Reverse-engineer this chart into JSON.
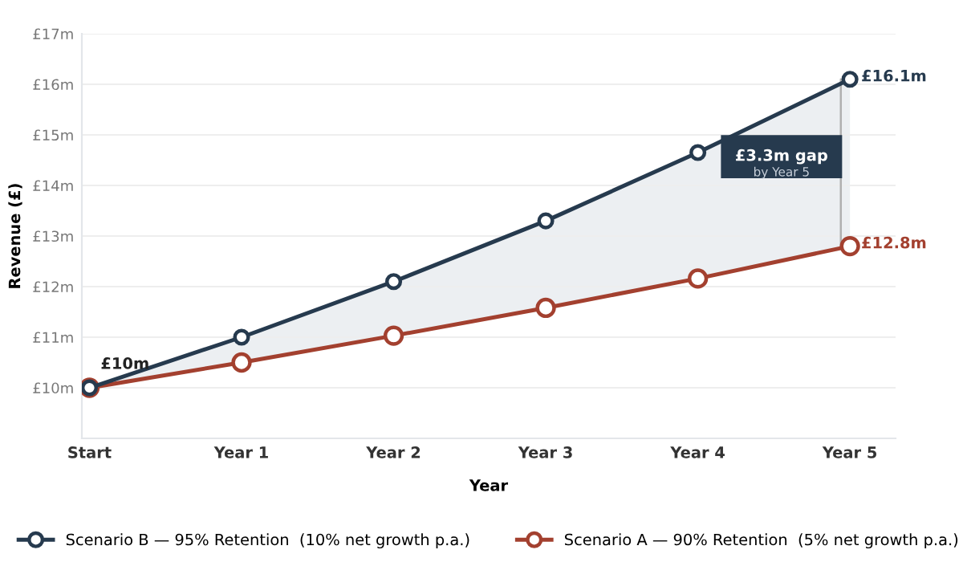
{
  "chart_data": {
    "type": "line",
    "xlabel": "Year",
    "ylabel": "Revenue (£)",
    "categories": [
      "Start",
      "Year 1",
      "Year 2",
      "Year 3",
      "Year 4",
      "Year 5"
    ],
    "series": [
      {
        "name": "Scenario B — 95% Retention  (10% net growth p.a.)",
        "color": "#263a4e",
        "values": [
          10,
          11,
          12.1,
          13.3,
          14.65,
          16.1
        ],
        "lower": [
          10,
          10.5,
          11.03,
          11.58,
          12.16,
          12.8
        ],
        "upper": [
          10,
          11,
          12.1,
          13.3,
          14.65,
          16.1
        ]
      },
      {
        "name": "Scenario A — 90% Retention  (5% net growth p.a.)",
        "color": "#a3402f",
        "values": [
          10,
          10.5,
          11.03,
          11.58,
          12.16,
          12.8
        ]
      }
    ],
    "ylim": [
      9,
      17
    ],
    "yticks": [
      {
        "value": 9,
        "label": null
      },
      {
        "value": 10,
        "label": "£10m"
      },
      {
        "value": 11,
        "label": "£11m"
      },
      {
        "value": 12,
        "label": "£12m"
      },
      {
        "value": 13,
        "label": "£13m"
      },
      {
        "value": 14,
        "label": "£14m"
      },
      {
        "value": 15,
        "label": "£15m"
      },
      {
        "value": 16,
        "label": "£16m"
      },
      {
        "value": 17,
        "label": "£17m"
      }
    ],
    "grid": "y",
    "legend": "bottom",
    "marker": "circle",
    "line_style": "solid",
    "annotations": [
      {
        "text": "£10m",
        "x": "Start",
        "y": 10
      },
      {
        "text": "£16.1m",
        "x": "Year 5",
        "y": 16.1
      },
      {
        "text": "£12.8m",
        "x": "Year 5",
        "y": 12.8
      },
      {
        "text": "£3.3m gap",
        "x": "Year 5",
        "y": 14.45
      },
      "by Year 5"
    ]
  }
}
